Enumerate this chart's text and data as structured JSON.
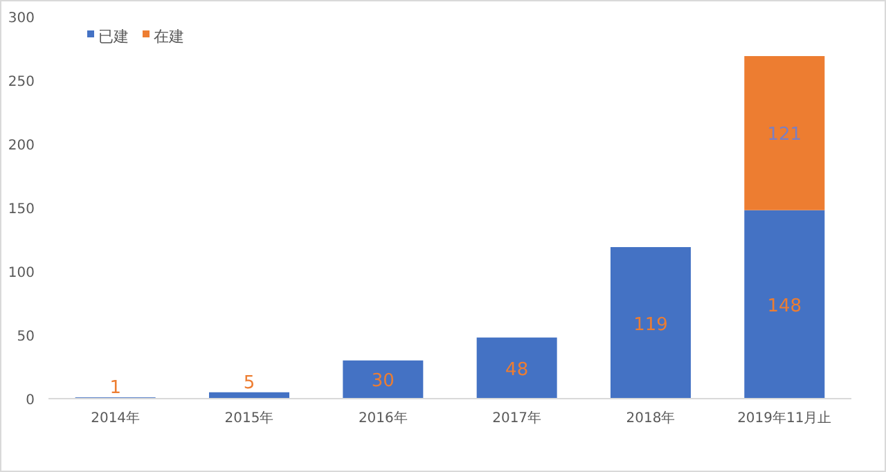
{
  "chart_data": {
    "type": "bar",
    "stacked": true,
    "categories": [
      "2014年",
      "2015年",
      "2016年",
      "2017年",
      "2018年",
      "2019年11月止"
    ],
    "series": [
      {
        "name": "已建",
        "color": "#4472c4",
        "values": [
          1,
          5,
          30,
          48,
          119,
          148
        ]
      },
      {
        "name": "在建",
        "color": "#ed7d31",
        "values": [
          null,
          null,
          null,
          null,
          null,
          121
        ]
      }
    ],
    "ylim": [
      0,
      300
    ],
    "yticks": [
      0,
      50,
      100,
      150,
      200,
      250,
      300
    ],
    "grid": false,
    "legend": "top left",
    "data_labels": true
  }
}
